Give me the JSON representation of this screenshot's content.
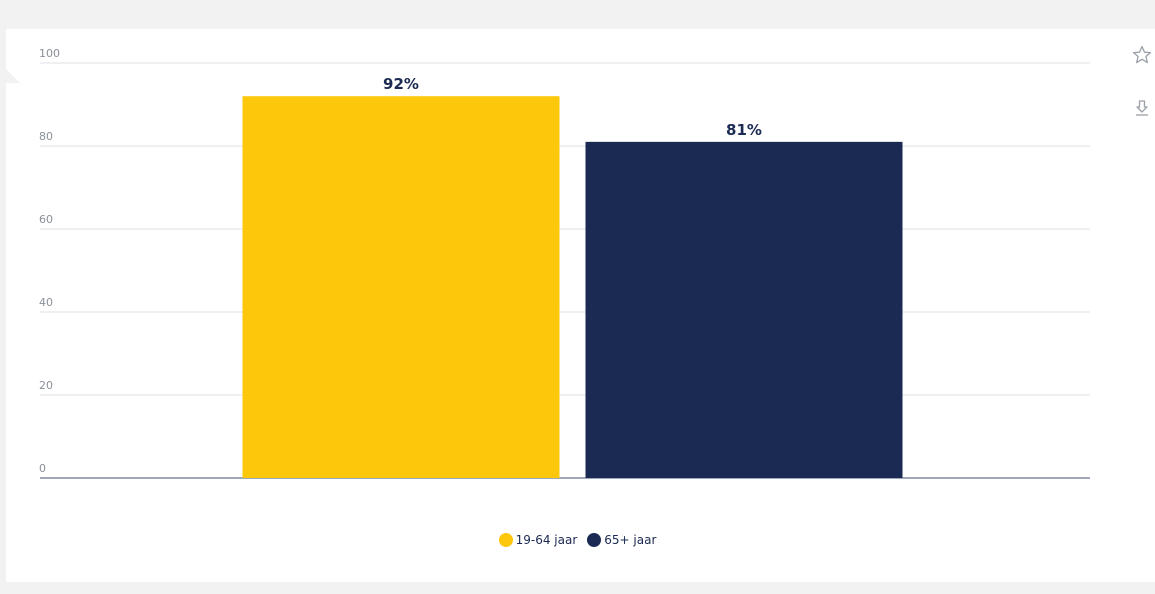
{
  "chart_data": {
    "type": "bar",
    "categories": [
      "19-64 jaar",
      "65+ jaar"
    ],
    "values": [
      92,
      81
    ],
    "data_labels": [
      "92%",
      "81%"
    ],
    "colors": [
      "#fdc70c",
      "#1b2a52"
    ],
    "ylim": [
      0,
      100
    ],
    "yticks": [
      "0",
      "20",
      "40",
      "60",
      "80",
      "100"
    ],
    "grid": true,
    "legend_position": "bottom-center",
    "title": "",
    "xlabel": "",
    "ylabel": ""
  },
  "legend": {
    "items": [
      {
        "label": "19-64 jaar",
        "color": "#fdc70c"
      },
      {
        "label": "65+ jaar",
        "color": "#1b2a52"
      }
    ]
  },
  "toolbar": {
    "favorite_icon": "star-icon",
    "download_icon": "download-icon"
  }
}
